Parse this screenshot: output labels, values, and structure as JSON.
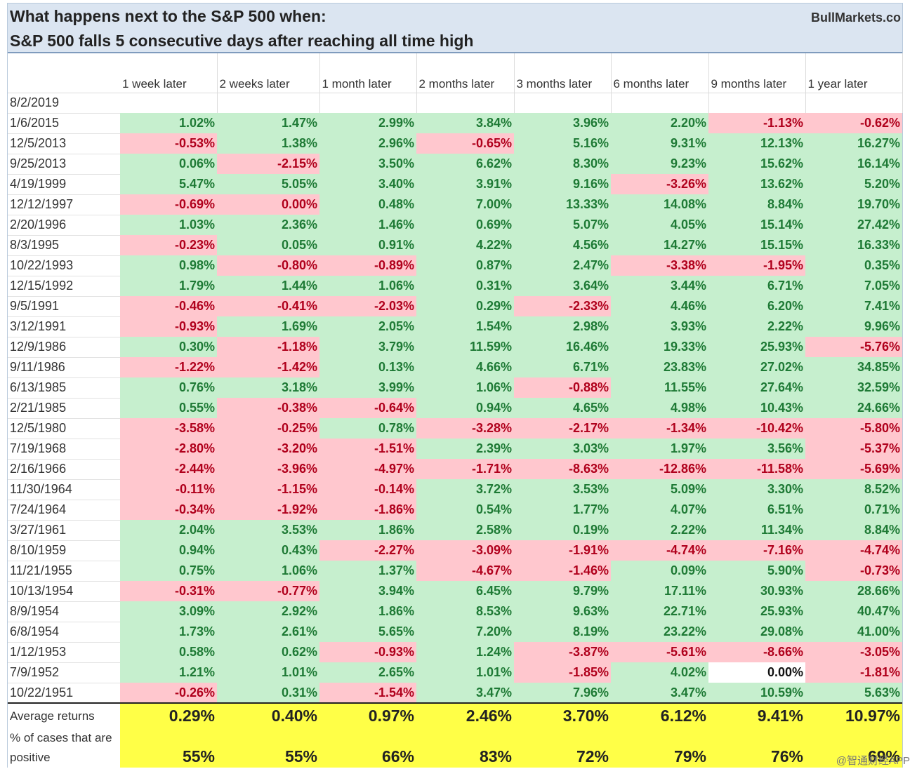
{
  "header": {
    "title_line1": "What happens next to the S&P 500 when:",
    "title_line2": "S&P 500 falls 5 consecutive days after reaching all time high",
    "brand": "BullMarkets.co"
  },
  "columns": [
    "1 week later",
    "2 weeks later",
    "1 month later",
    "2 months later",
    "3 months later",
    "6 months later",
    "9 months later",
    "1 year later"
  ],
  "rows": [
    {
      "date": "8/2/2019",
      "values": [
        "",
        "",
        "",
        "",
        "",
        "",
        "",
        ""
      ]
    },
    {
      "date": "1/6/2015",
      "values": [
        "1.02%",
        "1.47%",
        "2.99%",
        "3.84%",
        "3.96%",
        "2.20%",
        "-1.13%",
        "-0.62%"
      ]
    },
    {
      "date": "12/5/2013",
      "values": [
        "-0.53%",
        "1.38%",
        "2.96%",
        "-0.65%",
        "5.16%",
        "9.31%",
        "12.13%",
        "16.27%"
      ]
    },
    {
      "date": "9/25/2013",
      "values": [
        "0.06%",
        "-2.15%",
        "3.50%",
        "6.62%",
        "8.30%",
        "9.23%",
        "15.62%",
        "16.14%"
      ]
    },
    {
      "date": "4/19/1999",
      "values": [
        "5.47%",
        "5.05%",
        "3.40%",
        "3.91%",
        "9.16%",
        "-3.26%",
        "13.62%",
        "5.20%"
      ]
    },
    {
      "date": "12/12/1997",
      "values": [
        "-0.69%",
        "0.00%",
        "0.48%",
        "7.00%",
        "13.33%",
        "14.08%",
        "8.84%",
        "19.70%"
      ]
    },
    {
      "date": "2/20/1996",
      "values": [
        "1.03%",
        "2.36%",
        "1.46%",
        "0.69%",
        "5.07%",
        "4.05%",
        "15.14%",
        "27.42%"
      ]
    },
    {
      "date": "8/3/1995",
      "values": [
        "-0.23%",
        "0.05%",
        "0.91%",
        "4.22%",
        "4.56%",
        "14.27%",
        "15.15%",
        "16.33%"
      ]
    },
    {
      "date": "10/22/1993",
      "values": [
        "0.98%",
        "-0.80%",
        "-0.89%",
        "0.87%",
        "2.47%",
        "-3.38%",
        "-1.95%",
        "0.35%"
      ]
    },
    {
      "date": "12/15/1992",
      "values": [
        "1.79%",
        "1.44%",
        "1.06%",
        "0.31%",
        "3.64%",
        "3.44%",
        "6.71%",
        "7.05%"
      ]
    },
    {
      "date": "9/5/1991",
      "values": [
        "-0.46%",
        "-0.41%",
        "-2.03%",
        "0.29%",
        "-2.33%",
        "4.46%",
        "6.20%",
        "7.41%"
      ]
    },
    {
      "date": "3/12/1991",
      "values": [
        "-0.93%",
        "1.69%",
        "2.05%",
        "1.54%",
        "2.98%",
        "3.93%",
        "2.22%",
        "9.96%"
      ]
    },
    {
      "date": "12/9/1986",
      "values": [
        "0.30%",
        "-1.18%",
        "3.79%",
        "11.59%",
        "16.46%",
        "19.33%",
        "25.93%",
        "-5.76%"
      ]
    },
    {
      "date": "9/11/1986",
      "values": [
        "-1.22%",
        "-1.42%",
        "0.13%",
        "4.66%",
        "6.71%",
        "23.83%",
        "27.02%",
        "34.85%"
      ]
    },
    {
      "date": "6/13/1985",
      "values": [
        "0.76%",
        "3.18%",
        "3.99%",
        "1.06%",
        "-0.88%",
        "11.55%",
        "27.64%",
        "32.59%"
      ]
    },
    {
      "date": "2/21/1985",
      "values": [
        "0.55%",
        "-0.38%",
        "-0.64%",
        "0.94%",
        "4.65%",
        "4.98%",
        "10.43%",
        "24.66%"
      ]
    },
    {
      "date": "12/5/1980",
      "values": [
        "-3.58%",
        "-0.25%",
        "0.78%",
        "-3.28%",
        "-2.17%",
        "-1.34%",
        "-10.42%",
        "-5.80%"
      ]
    },
    {
      "date": "7/19/1968",
      "values": [
        "-2.80%",
        "-3.20%",
        "-1.51%",
        "2.39%",
        "3.03%",
        "1.97%",
        "3.56%",
        "-5.37%"
      ]
    },
    {
      "date": "2/16/1966",
      "values": [
        "-2.44%",
        "-3.96%",
        "-4.97%",
        "-1.71%",
        "-8.63%",
        "-12.86%",
        "-11.58%",
        "-5.69%"
      ]
    },
    {
      "date": "11/30/1964",
      "values": [
        "-0.11%",
        "-1.15%",
        "-0.14%",
        "3.72%",
        "3.53%",
        "5.09%",
        "3.30%",
        "8.52%"
      ]
    },
    {
      "date": "7/24/1964",
      "values": [
        "-0.34%",
        "-1.92%",
        "-1.86%",
        "0.54%",
        "1.77%",
        "4.07%",
        "6.51%",
        "0.71%"
      ]
    },
    {
      "date": "3/27/1961",
      "values": [
        "2.04%",
        "3.53%",
        "1.86%",
        "2.58%",
        "0.19%",
        "2.22%",
        "11.34%",
        "8.84%"
      ]
    },
    {
      "date": "8/10/1959",
      "values": [
        "0.94%",
        "0.43%",
        "-2.27%",
        "-3.09%",
        "-1.91%",
        "-4.74%",
        "-7.16%",
        "-4.74%"
      ]
    },
    {
      "date": "11/21/1955",
      "values": [
        "0.75%",
        "1.06%",
        "1.37%",
        "-4.67%",
        "-1.46%",
        "0.09%",
        "5.90%",
        "-0.73%"
      ]
    },
    {
      "date": "10/13/1954",
      "values": [
        "-0.31%",
        "-0.77%",
        "3.94%",
        "6.45%",
        "9.79%",
        "17.11%",
        "30.93%",
        "28.66%"
      ]
    },
    {
      "date": "8/9/1954",
      "values": [
        "3.09%",
        "2.92%",
        "1.86%",
        "8.53%",
        "9.63%",
        "22.71%",
        "25.93%",
        "40.47%"
      ]
    },
    {
      "date": "6/8/1954",
      "values": [
        "1.73%",
        "2.61%",
        "5.65%",
        "7.20%",
        "8.19%",
        "23.22%",
        "29.08%",
        "41.00%"
      ]
    },
    {
      "date": "1/12/1953",
      "values": [
        "0.58%",
        "0.62%",
        "-0.93%",
        "1.24%",
        "-3.87%",
        "-5.61%",
        "-8.66%",
        "-3.05%"
      ]
    },
    {
      "date": "7/9/1952",
      "values": [
        "1.21%",
        "1.01%",
        "2.65%",
        "1.01%",
        "-1.85%",
        "4.02%",
        "0.00%",
        "-1.81%"
      ]
    },
    {
      "date": "10/22/1951",
      "values": [
        "-0.26%",
        "0.31%",
        "-1.54%",
        "3.47%",
        "7.96%",
        "3.47%",
        "10.59%",
        "5.63%"
      ]
    }
  ],
  "summary": {
    "avg_label": "Average returns",
    "avg_values": [
      "0.29%",
      "0.40%",
      "0.97%",
      "2.46%",
      "3.70%",
      "6.12%",
      "9.41%",
      "10.97%"
    ],
    "pct_label": "% of cases that are positive",
    "pct_values": [
      "55%",
      "55%",
      "66%",
      "83%",
      "72%",
      "79%",
      "76%",
      "69%"
    ]
  },
  "watermark": "@智通财经APP"
}
